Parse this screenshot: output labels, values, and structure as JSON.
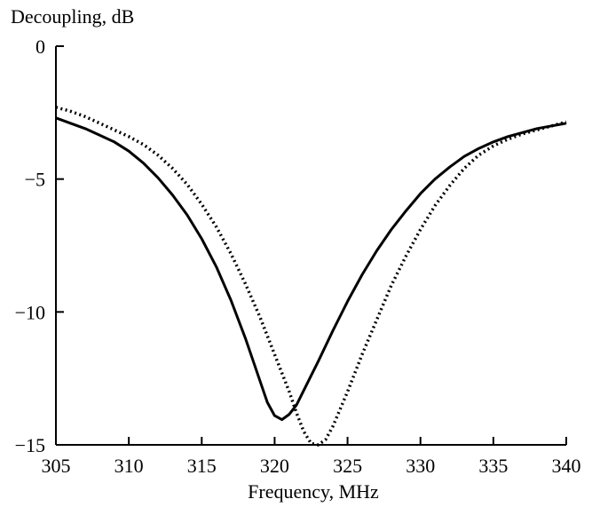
{
  "chart_data": {
    "type": "line",
    "title": "",
    "xlabel": "Frequency, MHz",
    "ylabel": "Decoupling, dB",
    "xlim": [
      305,
      340
    ],
    "ylim": [
      -15,
      0
    ],
    "x_ticks": [
      305,
      310,
      315,
      320,
      325,
      330,
      335,
      340
    ],
    "y_ticks": [
      0,
      -5,
      -10,
      -15
    ],
    "y_tick_labels": [
      "0",
      "−5",
      "−10",
      "−15"
    ],
    "grid": false,
    "legend": "none",
    "series": [
      {
        "style": "solid",
        "color": "#000000",
        "points": [
          [
            305,
            -2.7
          ],
          [
            306,
            -2.9
          ],
          [
            307,
            -3.1
          ],
          [
            308,
            -3.35
          ],
          [
            309,
            -3.6
          ],
          [
            310,
            -3.95
          ],
          [
            311,
            -4.4
          ],
          [
            312,
            -4.95
          ],
          [
            313,
            -5.6
          ],
          [
            314,
            -6.35
          ],
          [
            315,
            -7.25
          ],
          [
            316,
            -8.3
          ],
          [
            317,
            -9.55
          ],
          [
            318,
            -11.0
          ],
          [
            318.5,
            -11.8
          ],
          [
            319,
            -12.6
          ],
          [
            319.5,
            -13.4
          ],
          [
            320,
            -13.9
          ],
          [
            320.5,
            -14.05
          ],
          [
            321,
            -13.85
          ],
          [
            321.5,
            -13.5
          ],
          [
            322,
            -12.95
          ],
          [
            323,
            -11.85
          ],
          [
            324,
            -10.7
          ],
          [
            325,
            -9.6
          ],
          [
            326,
            -8.6
          ],
          [
            327,
            -7.7
          ],
          [
            328,
            -6.9
          ],
          [
            329,
            -6.2
          ],
          [
            330,
            -5.55
          ],
          [
            331,
            -5.0
          ],
          [
            332,
            -4.55
          ],
          [
            333,
            -4.15
          ],
          [
            334,
            -3.85
          ],
          [
            335,
            -3.6
          ],
          [
            336,
            -3.4
          ],
          [
            337,
            -3.25
          ],
          [
            338,
            -3.1
          ],
          [
            339,
            -3.0
          ],
          [
            340,
            -2.9
          ]
        ]
      },
      {
        "style": "dotted",
        "color": "#000000",
        "points": [
          [
            305,
            -2.3
          ],
          [
            306,
            -2.45
          ],
          [
            307,
            -2.65
          ],
          [
            308,
            -2.9
          ],
          [
            309,
            -3.15
          ],
          [
            310,
            -3.4
          ],
          [
            311,
            -3.7
          ],
          [
            312,
            -4.1
          ],
          [
            313,
            -4.6
          ],
          [
            314,
            -5.2
          ],
          [
            315,
            -5.95
          ],
          [
            316,
            -6.8
          ],
          [
            317,
            -7.8
          ],
          [
            318,
            -8.95
          ],
          [
            319,
            -10.2
          ],
          [
            320,
            -11.6
          ],
          [
            321,
            -13.0
          ],
          [
            321.5,
            -13.8
          ],
          [
            322,
            -14.5
          ],
          [
            322.5,
            -14.95
          ],
          [
            323,
            -15.0
          ],
          [
            323.5,
            -14.8
          ],
          [
            324,
            -14.3
          ],
          [
            325,
            -13.0
          ],
          [
            326,
            -11.6
          ],
          [
            327,
            -10.3
          ],
          [
            328,
            -9.0
          ],
          [
            329,
            -7.9
          ],
          [
            330,
            -6.9
          ],
          [
            331,
            -6.0
          ],
          [
            332,
            -5.25
          ],
          [
            333,
            -4.6
          ],
          [
            334,
            -4.1
          ],
          [
            335,
            -3.75
          ],
          [
            336,
            -3.5
          ],
          [
            337,
            -3.3
          ],
          [
            338,
            -3.15
          ],
          [
            339,
            -3.0
          ],
          [
            340,
            -2.85
          ]
        ]
      }
    ]
  }
}
